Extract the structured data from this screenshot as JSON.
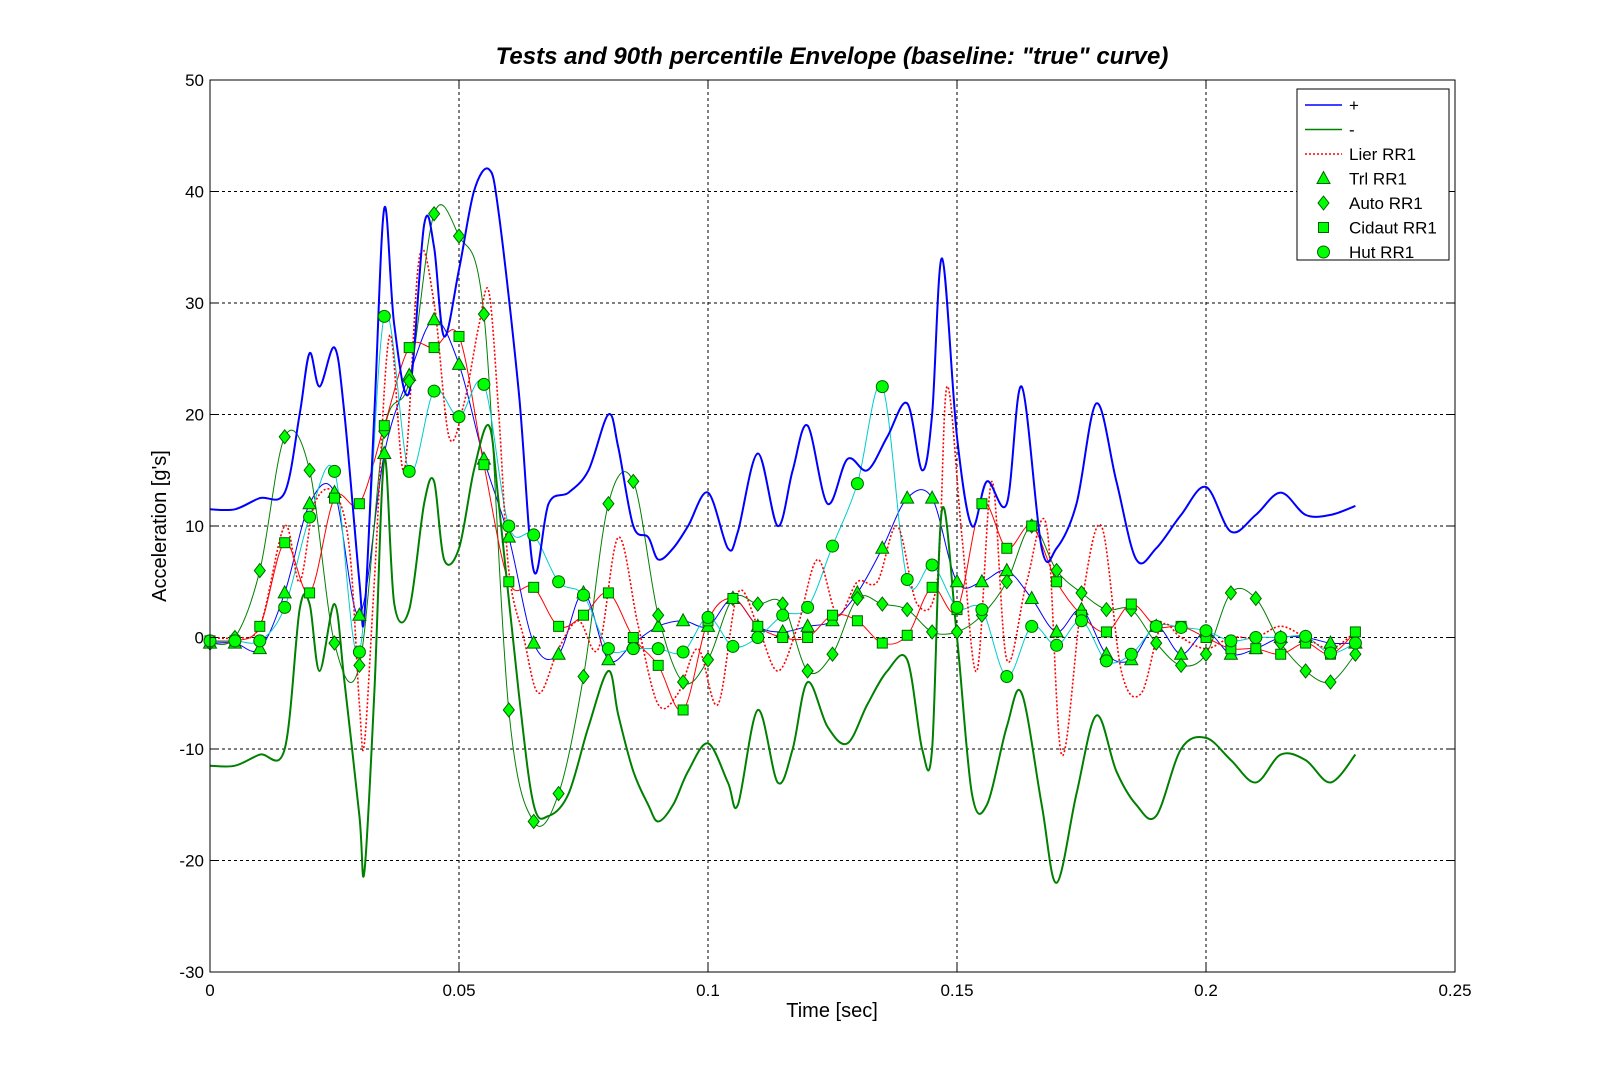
{
  "chart_data": {
    "type": "line",
    "title": "Tests and 90th percentile Envelope (baseline: \"true\" curve)",
    "xlabel": "Time [sec]",
    "ylabel": "Acceleration [g's]",
    "xlim": [
      0,
      0.25
    ],
    "ylim": [
      -30,
      50
    ],
    "xticks": [
      0,
      0.05,
      0.1,
      0.15,
      0.2,
      0.25
    ],
    "xtick_labels": [
      "0",
      "0.05",
      "0.1",
      "0.15",
      "0.2",
      "0.25"
    ],
    "yticks": [
      -30,
      -20,
      -10,
      0,
      10,
      20,
      30,
      40,
      50
    ],
    "ytick_labels": [
      "-30",
      "-20",
      "-10",
      "0",
      "10",
      "20",
      "30",
      "40",
      "50"
    ],
    "grid": true,
    "legend_position": "top-right",
    "series": [
      {
        "name": "+",
        "color": "#0000ff",
        "style": "solid",
        "marker": "none",
        "show_in_legend": true,
        "x": [
          0,
          0.005,
          0.01,
          0.015,
          0.018,
          0.02,
          0.022,
          0.025,
          0.027,
          0.03,
          0.031,
          0.033,
          0.035,
          0.037,
          0.04,
          0.043,
          0.045,
          0.047,
          0.05,
          0.053,
          0.056,
          0.058,
          0.062,
          0.065,
          0.068,
          0.072,
          0.076,
          0.08,
          0.082,
          0.085,
          0.088,
          0.09,
          0.093,
          0.096,
          0.1,
          0.104,
          0.106,
          0.11,
          0.114,
          0.117,
          0.12,
          0.124,
          0.128,
          0.132,
          0.136,
          0.14,
          0.143,
          0.145,
          0.147,
          0.15,
          0.153,
          0.156,
          0.16,
          0.163,
          0.167,
          0.17,
          0.174,
          0.178,
          0.182,
          0.186,
          0.19,
          0.195,
          0.2,
          0.205,
          0.21,
          0.215,
          0.22,
          0.225,
          0.23
        ],
        "y": [
          11.5,
          11.5,
          12.5,
          13,
          20,
          25.5,
          22.5,
          26,
          20,
          5,
          2,
          20,
          38.5,
          28,
          22,
          37,
          35,
          27,
          33,
          40,
          42,
          38,
          22,
          6,
          12,
          13,
          15,
          20,
          17,
          10,
          9,
          7,
          8,
          10,
          13,
          8,
          9.5,
          16.5,
          10,
          15,
          19,
          12,
          16,
          15,
          18,
          21,
          15,
          20,
          34,
          18,
          10,
          14,
          12,
          22.5,
          8,
          8,
          12,
          21,
          14,
          7,
          8,
          11,
          13.5,
          9.5,
          11,
          13,
          11,
          11,
          11.8
        ]
      },
      {
        "name": "-",
        "color": "#008000",
        "style": "solid",
        "marker": "none",
        "show_in_legend": true,
        "x": [
          0,
          0.005,
          0.01,
          0.015,
          0.018,
          0.02,
          0.022,
          0.025,
          0.027,
          0.03,
          0.031,
          0.033,
          0.035,
          0.037,
          0.04,
          0.043,
          0.045,
          0.047,
          0.05,
          0.053,
          0.056,
          0.058,
          0.062,
          0.065,
          0.068,
          0.072,
          0.076,
          0.08,
          0.082,
          0.085,
          0.088,
          0.09,
          0.093,
          0.096,
          0.1,
          0.104,
          0.106,
          0.11,
          0.114,
          0.117,
          0.12,
          0.124,
          0.128,
          0.132,
          0.136,
          0.14,
          0.143,
          0.145,
          0.147,
          0.15,
          0.153,
          0.156,
          0.16,
          0.163,
          0.167,
          0.17,
          0.174,
          0.178,
          0.182,
          0.186,
          0.19,
          0.195,
          0.2,
          0.205,
          0.21,
          0.215,
          0.22,
          0.225,
          0.23
        ],
        "y": [
          -11.5,
          -11.5,
          -10.5,
          -10,
          2.5,
          3,
          -3,
          3,
          -4,
          -16,
          -21,
          -5,
          16,
          3,
          2.5,
          12,
          14,
          7,
          8,
          15,
          19,
          12,
          -5,
          -15,
          -16,
          -14,
          -8,
          -3,
          -7,
          -12,
          -15,
          -16.5,
          -15,
          -12,
          -9.5,
          -13,
          -15,
          -6.5,
          -13,
          -10,
          -4,
          -8,
          -9.5,
          -6,
          -3,
          -2,
          -10,
          -10,
          11.5,
          0,
          -14,
          -15,
          -8,
          -5,
          -15,
          -22,
          -14,
          -7,
          -12,
          -15,
          -16,
          -10,
          -9,
          -11,
          -13,
          -10.5,
          -11,
          -13,
          -10.5
        ]
      },
      {
        "name": "Lier RR1",
        "color": "#ff0000",
        "style": "dotted",
        "marker": "none",
        "show_in_legend": true,
        "x": [
          0,
          0.005,
          0.01,
          0.015,
          0.018,
          0.021,
          0.025,
          0.028,
          0.03,
          0.031,
          0.033,
          0.036,
          0.039,
          0.042,
          0.045,
          0.048,
          0.051,
          0.054,
          0.056,
          0.058,
          0.06,
          0.063,
          0.066,
          0.07,
          0.074,
          0.078,
          0.082,
          0.086,
          0.09,
          0.094,
          0.098,
          0.102,
          0.106,
          0.11,
          0.114,
          0.118,
          0.122,
          0.126,
          0.13,
          0.134,
          0.138,
          0.142,
          0.146,
          0.148,
          0.151,
          0.154,
          0.157,
          0.16,
          0.164,
          0.168,
          0.171,
          0.175,
          0.179,
          0.183,
          0.187,
          0.191,
          0.195,
          0.2,
          0.205,
          0.21,
          0.215,
          0.22,
          0.225,
          0.23
        ],
        "y": [
          0,
          0,
          1,
          10,
          5,
          12,
          13,
          8,
          -6,
          -9.5,
          5,
          27,
          15,
          34,
          30,
          18,
          21,
          28,
          31,
          20,
          6,
          0,
          -5,
          -1,
          1.5,
          -1,
          9,
          1,
          -6,
          -5,
          -1,
          -6,
          4,
          1,
          -3,
          1,
          7,
          2,
          5,
          5,
          10,
          3,
          5,
          22.5,
          9,
          -3,
          14,
          -2,
          5,
          10,
          -10.5,
          3,
          10,
          -3,
          -5,
          1,
          0,
          -1,
          0,
          0,
          1,
          0,
          -1,
          0.5
        ]
      },
      {
        "name": "Trl RR1",
        "color": "#0000ff",
        "style": "solid",
        "marker": "triangle",
        "show_in_legend": true,
        "x": [
          0,
          0.005,
          0.01,
          0.015,
          0.02,
          0.025,
          0.03,
          0.035,
          0.04,
          0.045,
          0.05,
          0.055,
          0.06,
          0.065,
          0.07,
          0.075,
          0.08,
          0.085,
          0.09,
          0.095,
          0.1,
          0.105,
          0.11,
          0.115,
          0.12,
          0.125,
          0.13,
          0.135,
          0.14,
          0.145,
          0.15,
          0.155,
          0.16,
          0.165,
          0.17,
          0.175,
          0.18,
          0.185,
          0.19,
          0.195,
          0.2,
          0.205,
          0.21,
          0.215,
          0.22,
          0.225,
          0.23
        ],
        "y": [
          -0.5,
          -0.5,
          -1,
          4,
          12,
          13,
          2,
          16.5,
          23.5,
          28.5,
          24.5,
          16,
          9,
          -0.5,
          -1.5,
          4,
          -2,
          -0.5,
          1,
          1.5,
          1,
          3.5,
          1,
          0.5,
          1,
          1.5,
          4,
          8,
          12.5,
          12.5,
          5,
          5,
          6,
          3.5,
          0.5,
          2.5,
          -1.5,
          -2,
          1,
          -1.5,
          0.5,
          -1.5,
          -1,
          0,
          0,
          -0.5,
          -0.5
        ]
      },
      {
        "name": "Auto RR1",
        "color": "#008000",
        "style": "solid",
        "marker": "diamond",
        "show_in_legend": true,
        "x": [
          0,
          0.005,
          0.01,
          0.015,
          0.02,
          0.025,
          0.03,
          0.035,
          0.04,
          0.045,
          0.05,
          0.055,
          0.06,
          0.065,
          0.07,
          0.075,
          0.08,
          0.085,
          0.09,
          0.095,
          0.1,
          0.105,
          0.11,
          0.115,
          0.12,
          0.125,
          0.13,
          0.135,
          0.14,
          0.145,
          0.15,
          0.155,
          0.16,
          0.165,
          0.17,
          0.175,
          0.18,
          0.185,
          0.19,
          0.195,
          0.2,
          0.205,
          0.21,
          0.215,
          0.22,
          0.225,
          0.23
        ],
        "y": [
          -0.5,
          0,
          6,
          18,
          15,
          -0.5,
          -2.5,
          18.5,
          23,
          38,
          36,
          29,
          -6.5,
          -16.5,
          -14,
          -3.5,
          12,
          14,
          2,
          -4,
          -2,
          3.5,
          3,
          3,
          -3,
          -1.5,
          3.5,
          3,
          2.5,
          0.5,
          0.5,
          2,
          5,
          10,
          6,
          4,
          2.5,
          2.5,
          -0.5,
          -2.5,
          -1.5,
          4,
          3.5,
          -0.5,
          -3,
          -4,
          -1.5
        ]
      },
      {
        "name": "Cidaut RR1",
        "color": "#ff0000",
        "style": "solid",
        "marker": "square",
        "show_in_legend": true,
        "x": [
          0,
          0.005,
          0.01,
          0.015,
          0.02,
          0.025,
          0.03,
          0.035,
          0.04,
          0.045,
          0.05,
          0.055,
          0.06,
          0.065,
          0.07,
          0.075,
          0.08,
          0.085,
          0.09,
          0.095,
          0.1,
          0.105,
          0.11,
          0.115,
          0.12,
          0.125,
          0.13,
          0.135,
          0.14,
          0.145,
          0.15,
          0.155,
          0.16,
          0.165,
          0.17,
          0.175,
          0.18,
          0.185,
          0.19,
          0.195,
          0.2,
          0.205,
          0.21,
          0.215,
          0.22,
          0.225,
          0.23
        ],
        "y": [
          -0.3,
          -0.3,
          1,
          8.5,
          4,
          12.5,
          12,
          19,
          26,
          26,
          27,
          15.5,
          5,
          4.5,
          1,
          2,
          4,
          0,
          -2.5,
          -6.5,
          1.5,
          3.5,
          1,
          0,
          0,
          2,
          1.5,
          -0.5,
          0.2,
          4.5,
          2.5,
          12,
          8,
          10,
          5,
          2,
          0.5,
          3,
          1,
          1,
          0,
          -1,
          -1,
          -1.5,
          -0.5,
          -1.5,
          0.5
        ]
      },
      {
        "name": "Hut RR1",
        "color": "#00cccc",
        "style": "solid",
        "marker": "circle",
        "show_in_legend": true,
        "x": [
          0,
          0.005,
          0.01,
          0.015,
          0.02,
          0.025,
          0.03,
          0.035,
          0.04,
          0.045,
          0.05,
          0.055,
          0.06,
          0.065,
          0.07,
          0.075,
          0.08,
          0.085,
          0.09,
          0.095,
          0.1,
          0.105,
          0.11,
          0.115,
          0.12,
          0.125,
          0.13,
          0.135,
          0.14,
          0.145,
          0.15,
          0.155,
          0.16,
          0.165,
          0.17,
          0.175,
          0.18,
          0.185,
          0.19,
          0.195,
          0.2,
          0.205,
          0.21,
          0.215,
          0.22,
          0.225,
          0.23
        ],
        "y": [
          -0.3,
          -0.3,
          -0.3,
          2.7,
          10.8,
          14.9,
          -1.3,
          28.8,
          14.9,
          22.1,
          19.8,
          22.7,
          10,
          9.2,
          5,
          3.8,
          -1,
          -1,
          -1,
          -1.3,
          1.8,
          -0.8,
          0,
          2,
          2.7,
          8.2,
          13.8,
          22.5,
          5.2,
          6.5,
          2.7,
          2.5,
          -3.5,
          1,
          -0.7,
          1.5,
          -2.1,
          -1.5,
          1,
          0.9,
          0.6,
          -0.3,
          0,
          0,
          0.1,
          -1.4,
          -0.5
        ]
      }
    ]
  }
}
